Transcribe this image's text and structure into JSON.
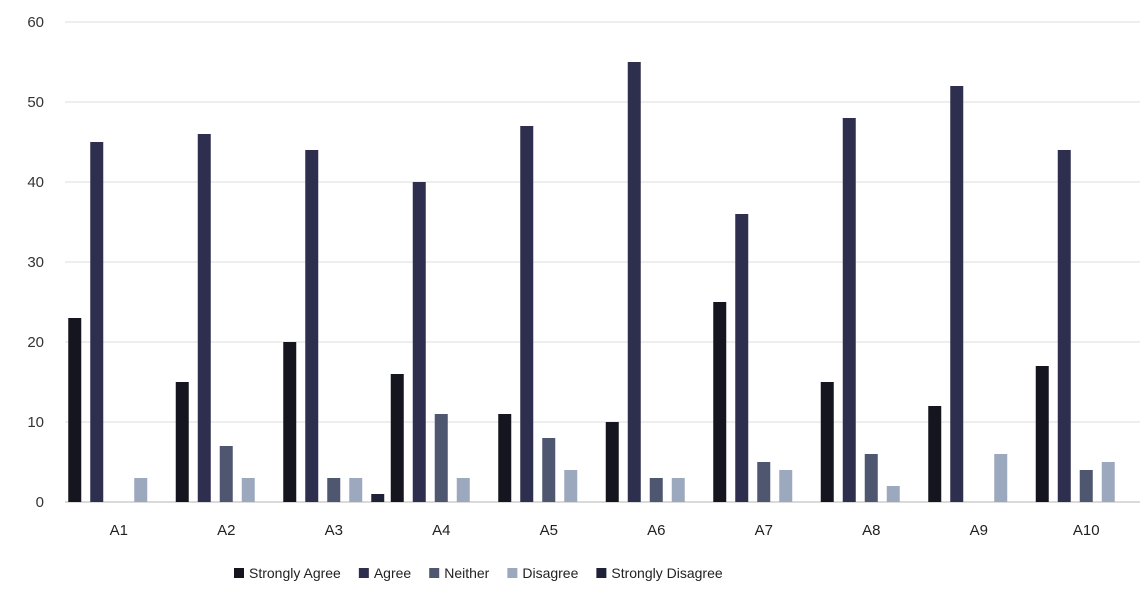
{
  "chart_data": {
    "type": "bar",
    "title": "",
    "xlabel": "",
    "ylabel": "",
    "ylim": [
      0,
      60
    ],
    "yticks": [
      0,
      10,
      20,
      30,
      40,
      50,
      60
    ],
    "grid": true,
    "legend_position": "bottom",
    "categories": [
      "A1",
      "A2",
      "A3",
      "A4",
      "A5",
      "A6",
      "A7",
      "A8",
      "A9",
      "A10"
    ],
    "series": [
      {
        "name": "Strongly Agree",
        "color": "#15151f",
        "values": [
          23,
          15,
          20,
          16,
          11,
          10,
          25,
          15,
          12,
          17
        ]
      },
      {
        "name": "Agree",
        "color": "#2e2f4e",
        "values": [
          45,
          46,
          44,
          40,
          47,
          55,
          36,
          48,
          52,
          44
        ]
      },
      {
        "name": "Neither",
        "color": "#4e5670",
        "values": [
          0,
          7,
          3,
          11,
          8,
          3,
          5,
          6,
          0,
          4
        ]
      },
      {
        "name": "Disagree",
        "color": "#9ba8bd",
        "values": [
          3,
          3,
          3,
          3,
          4,
          3,
          4,
          2,
          6,
          5
        ]
      },
      {
        "name": "Strongly Disagree",
        "color": "#1f2236",
        "values": [
          0,
          0,
          1,
          0,
          0,
          0,
          0,
          0,
          0,
          0
        ]
      }
    ]
  }
}
